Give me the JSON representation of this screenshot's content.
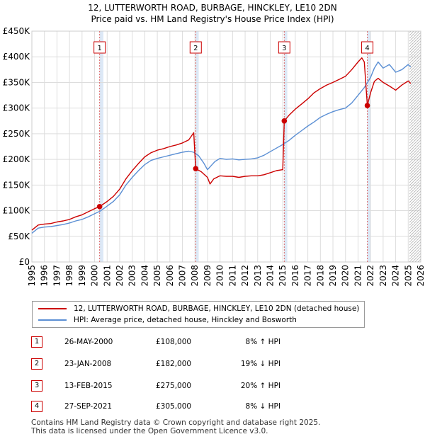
{
  "title_line1": "12, LUTTERWORTH ROAD, BURBAGE, HINCKLEY, LE10 2DN",
  "title_line2": "Price paid vs. HM Land Registry's House Price Index (HPI)",
  "colors": {
    "property": "#cc0000",
    "hpi": "#5b8fd4",
    "band": "#dce8f6",
    "marker_border": "#cc0000"
  },
  "legend": {
    "property": "12, LUTTERWORTH ROAD, BURBAGE, HINCKLEY, LE10 2DN (detached house)",
    "hpi": "HPI: Average price, detached house, Hinckley and Bosworth"
  },
  "sales": [
    {
      "num": "1",
      "date": "26-MAY-2000",
      "price": "£108,000",
      "hpi": "8% ↑ HPI"
    },
    {
      "num": "2",
      "date": "23-JAN-2008",
      "price": "£182,000",
      "hpi": "19% ↓ HPI"
    },
    {
      "num": "3",
      "date": "13-FEB-2015",
      "price": "£275,000",
      "hpi": "20% ↑ HPI"
    },
    {
      "num": "4",
      "date": "27-SEP-2021",
      "price": "£305,000",
      "hpi": "8% ↓ HPI"
    }
  ],
  "footer_line1": "Contains HM Land Registry data © Crown copyright and database right 2025.",
  "footer_line2": "This data is licensed under the Open Government Licence v3.0.",
  "chart_data": {
    "type": "line",
    "title": "12, LUTTERWORTH ROAD, BURBAGE, HINCKLEY, LE10 2DN",
    "subtitle": "Price paid vs. HM Land Registry's House Price Index (HPI)",
    "xlabel": "",
    "ylabel": "",
    "xlim": [
      1995,
      2026
    ],
    "ylim": [
      0,
      450000
    ],
    "y_ticks": [
      0,
      50000,
      100000,
      150000,
      200000,
      250000,
      300000,
      350000,
      400000,
      450000
    ],
    "y_tick_labels": [
      "£0",
      "£50K",
      "£100K",
      "£150K",
      "£200K",
      "£250K",
      "£300K",
      "£350K",
      "£400K",
      "£450K"
    ],
    "x_ticks": [
      1995,
      1996,
      1997,
      1998,
      1999,
      2000,
      2001,
      2002,
      2003,
      2004,
      2005,
      2006,
      2007,
      2008,
      2009,
      2010,
      2011,
      2012,
      2013,
      2014,
      2015,
      2016,
      2017,
      2018,
      2019,
      2020,
      2021,
      2022,
      2023,
      2024,
      2025,
      2026
    ],
    "x_tick_labels": [
      "1995",
      "1996",
      "1997",
      "1998",
      "1999",
      "2000",
      "2001",
      "2002",
      "2003",
      "2004",
      "2005",
      "2006",
      "2007",
      "2008",
      "2009",
      "2010",
      "2011",
      "2012",
      "2013",
      "2014",
      "2015",
      "2016",
      "2017",
      "2018",
      "2019",
      "2020",
      "2021",
      "2022",
      "2023",
      "2024",
      "2025",
      "2026"
    ],
    "grid": true,
    "highlight_bands": [
      [
        2000.4,
        2000.7
      ],
      [
        2008.06,
        2008.3
      ],
      [
        2015.12,
        2015.36
      ],
      [
        2021.74,
        2021.98
      ]
    ],
    "hatched_future_from": 2025.1,
    "series": [
      {
        "name": "HPI: Average price, detached house, Hinckley and Bosworth",
        "x": [
          1995.0,
          1995.5,
          1996.0,
          1996.5,
          1997.0,
          1997.5,
          1998.0,
          1998.5,
          1999.0,
          1999.5,
          2000.0,
          2000.5,
          2001.0,
          2001.5,
          2002.0,
          2002.5,
          2003.0,
          2003.5,
          2004.0,
          2004.5,
          2005.0,
          2005.5,
          2006.0,
          2006.5,
          2007.0,
          2007.5,
          2007.9,
          2008.3,
          2008.7,
          2009.0,
          2009.3,
          2009.6,
          2010.0,
          2010.5,
          2011.0,
          2011.5,
          2012.0,
          2012.5,
          2013.0,
          2013.5,
          2014.0,
          2014.5,
          2015.0,
          2015.5,
          2016.0,
          2016.5,
          2017.0,
          2017.5,
          2018.0,
          2018.5,
          2019.0,
          2019.5,
          2020.0,
          2020.5,
          2021.0,
          2021.5,
          2022.0,
          2022.3,
          2022.6,
          2023.0,
          2023.5,
          2024.0,
          2024.5,
          2025.0,
          2025.2
        ],
        "values": [
          56000,
          66000,
          68000,
          69000,
          71000,
          73000,
          76000,
          80000,
          83000,
          88000,
          94000,
          100000,
          109000,
          118000,
          131000,
          150000,
          165000,
          178000,
          190000,
          198000,
          202000,
          205000,
          208000,
          211000,
          214000,
          216000,
          214000,
          207000,
          193000,
          180000,
          188000,
          196000,
          202000,
          200000,
          201000,
          199000,
          200000,
          201000,
          203000,
          208000,
          215000,
          222000,
          229000,
          237000,
          247000,
          256000,
          265000,
          273000,
          282000,
          288000,
          293000,
          297000,
          300000,
          310000,
          325000,
          340000,
          360000,
          378000,
          390000,
          378000,
          385000,
          370000,
          375000,
          385000,
          380000
        ]
      },
      {
        "name": "12, LUTTERWORTH ROAD, BURBAGE, HINCKLEY, LE10 2DN (detached house)",
        "x": [
          1995.0,
          1995.5,
          1996.0,
          1996.5,
          1997.0,
          1997.5,
          1998.0,
          1998.5,
          1999.0,
          1999.5,
          2000.0,
          2000.4,
          2001.0,
          2001.5,
          2002.0,
          2002.5,
          2003.0,
          2003.5,
          2004.0,
          2004.5,
          2005.0,
          2005.5,
          2006.0,
          2006.5,
          2007.0,
          2007.5,
          2007.9,
          2008.06,
          2008.5,
          2009.0,
          2009.2,
          2009.5,
          2010.0,
          2010.5,
          2011.0,
          2011.5,
          2012.0,
          2012.5,
          2013.0,
          2013.5,
          2014.0,
          2014.5,
          2015.0,
          2015.12,
          2015.5,
          2016.0,
          2016.5,
          2017.0,
          2017.5,
          2018.0,
          2018.5,
          2019.0,
          2019.5,
          2020.0,
          2020.5,
          2021.0,
          2021.3,
          2021.5,
          2021.74,
          2022.0,
          2022.3,
          2022.6,
          2023.0,
          2023.5,
          2024.0,
          2024.5,
          2025.0,
          2025.2
        ],
        "values": [
          62000,
          72000,
          74000,
          75000,
          78000,
          80000,
          83000,
          88000,
          92000,
          98000,
          104000,
          108000,
          118000,
          128000,
          142000,
          162000,
          178000,
          192000,
          205000,
          213000,
          218000,
          221000,
          225000,
          228000,
          232000,
          238000,
          252000,
          182000,
          176000,
          165000,
          152000,
          162000,
          168000,
          167000,
          167000,
          165000,
          167000,
          168000,
          168000,
          170000,
          174000,
          178000,
          180000,
          275000,
          286000,
          298000,
          308000,
          318000,
          330000,
          338000,
          345000,
          350000,
          356000,
          362000,
          375000,
          390000,
          398000,
          390000,
          305000,
          330000,
          352000,
          358000,
          350000,
          343000,
          335000,
          345000,
          353000,
          348000
        ]
      }
    ],
    "sales": [
      {
        "label": "1",
        "x": 2000.4,
        "y": 108000
      },
      {
        "label": "2",
        "x": 2008.06,
        "y": 182000
      },
      {
        "label": "3",
        "x": 2015.12,
        "y": 275000
      },
      {
        "label": "4",
        "x": 2021.74,
        "y": 305000
      }
    ]
  }
}
